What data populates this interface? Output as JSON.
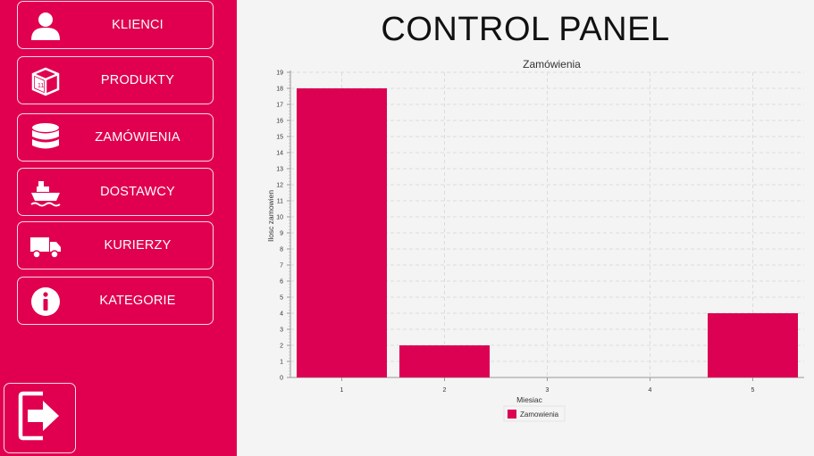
{
  "sidebar": {
    "items": [
      {
        "label": "KLIENCI",
        "icon": "user-icon"
      },
      {
        "label": "PRODUKTY",
        "icon": "box-icon"
      },
      {
        "label": "ZAMÓWIENIA",
        "icon": "database-icon"
      },
      {
        "label": "DOSTAWCY",
        "icon": "ship-icon"
      },
      {
        "label": "KURIERZY",
        "icon": "truck-icon"
      },
      {
        "label": "KATEGORIE",
        "icon": "info-icon"
      }
    ],
    "logout_icon": "logout-icon"
  },
  "header": {
    "title": "CONTROL PANEL"
  },
  "colors": {
    "accent": "#e0004f",
    "bar": "#dc0152",
    "background": "#f4f4f4"
  },
  "chart_data": {
    "type": "bar",
    "title": "Zamówienia",
    "xlabel": "Miesiac",
    "ylabel": "Ilosc zamowien",
    "categories": [
      "1",
      "2",
      "3",
      "4",
      "5"
    ],
    "series": [
      {
        "name": "Zamowienia",
        "values": [
          18,
          2,
          0,
          0,
          4
        ]
      }
    ],
    "ylim": [
      0,
      19
    ],
    "yticks": [
      0,
      1,
      2,
      3,
      4,
      5,
      6,
      7,
      8,
      9,
      10,
      11,
      12,
      13,
      14,
      15,
      16,
      17,
      18,
      19
    ],
    "grid": true,
    "legend": "bottom"
  }
}
